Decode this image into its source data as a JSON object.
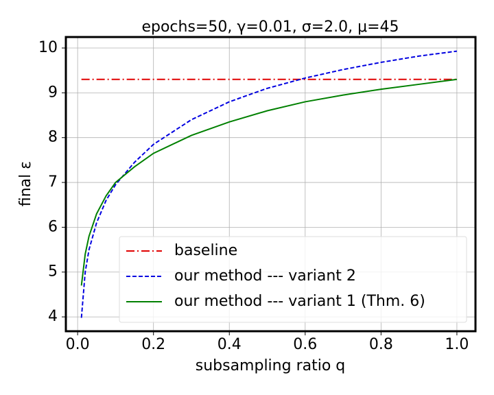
{
  "chart_data": {
    "type": "line",
    "title": "epochs=50, γ=0.01, σ=2.0, μ=45",
    "x_label": "subsampling ratio q",
    "y_label": "final ε",
    "x": [
      0.01,
      0.02,
      0.03,
      0.05,
      0.075,
      0.1,
      0.15,
      0.2,
      0.3,
      0.4,
      0.5,
      0.6,
      0.7,
      0.8,
      0.9,
      1.0
    ],
    "series": [
      {
        "name": "baseline",
        "color": "#e00000",
        "linestyle": "-.",
        "values": [
          9.3,
          9.3,
          9.3,
          9.3,
          9.3,
          9.3,
          9.3,
          9.3,
          9.3,
          9.3,
          9.3,
          9.3,
          9.3,
          9.3,
          9.3,
          9.3
        ]
      },
      {
        "name": "our method --- variant 2",
        "color": "#0000e0",
        "linestyle": "--",
        "values": [
          3.98,
          5.0,
          5.5,
          6.1,
          6.6,
          6.95,
          7.45,
          7.85,
          8.4,
          8.8,
          9.1,
          9.33,
          9.52,
          9.68,
          9.82,
          9.93
        ]
      },
      {
        "name": "our method --- variant 1 (Thm. 6)",
        "color": "#008000",
        "linestyle": "-",
        "values": [
          4.7,
          5.4,
          5.8,
          6.3,
          6.7,
          7.0,
          7.35,
          7.65,
          8.05,
          8.35,
          8.6,
          8.8,
          8.95,
          9.08,
          9.19,
          9.3
        ]
      }
    ],
    "xlim": [
      -0.031,
      1.049
    ],
    "ylim": [
      3.68,
      10.245
    ],
    "xticks": [
      {
        "value": 0.0,
        "label": "0.0"
      },
      0.2,
      0.4,
      0.6,
      0.8,
      {
        "value": 1.0,
        "label": "1.0"
      }
    ],
    "yticks": [
      4,
      5,
      6,
      7,
      8,
      9,
      10
    ],
    "grid": true,
    "legend": "lower right"
  }
}
